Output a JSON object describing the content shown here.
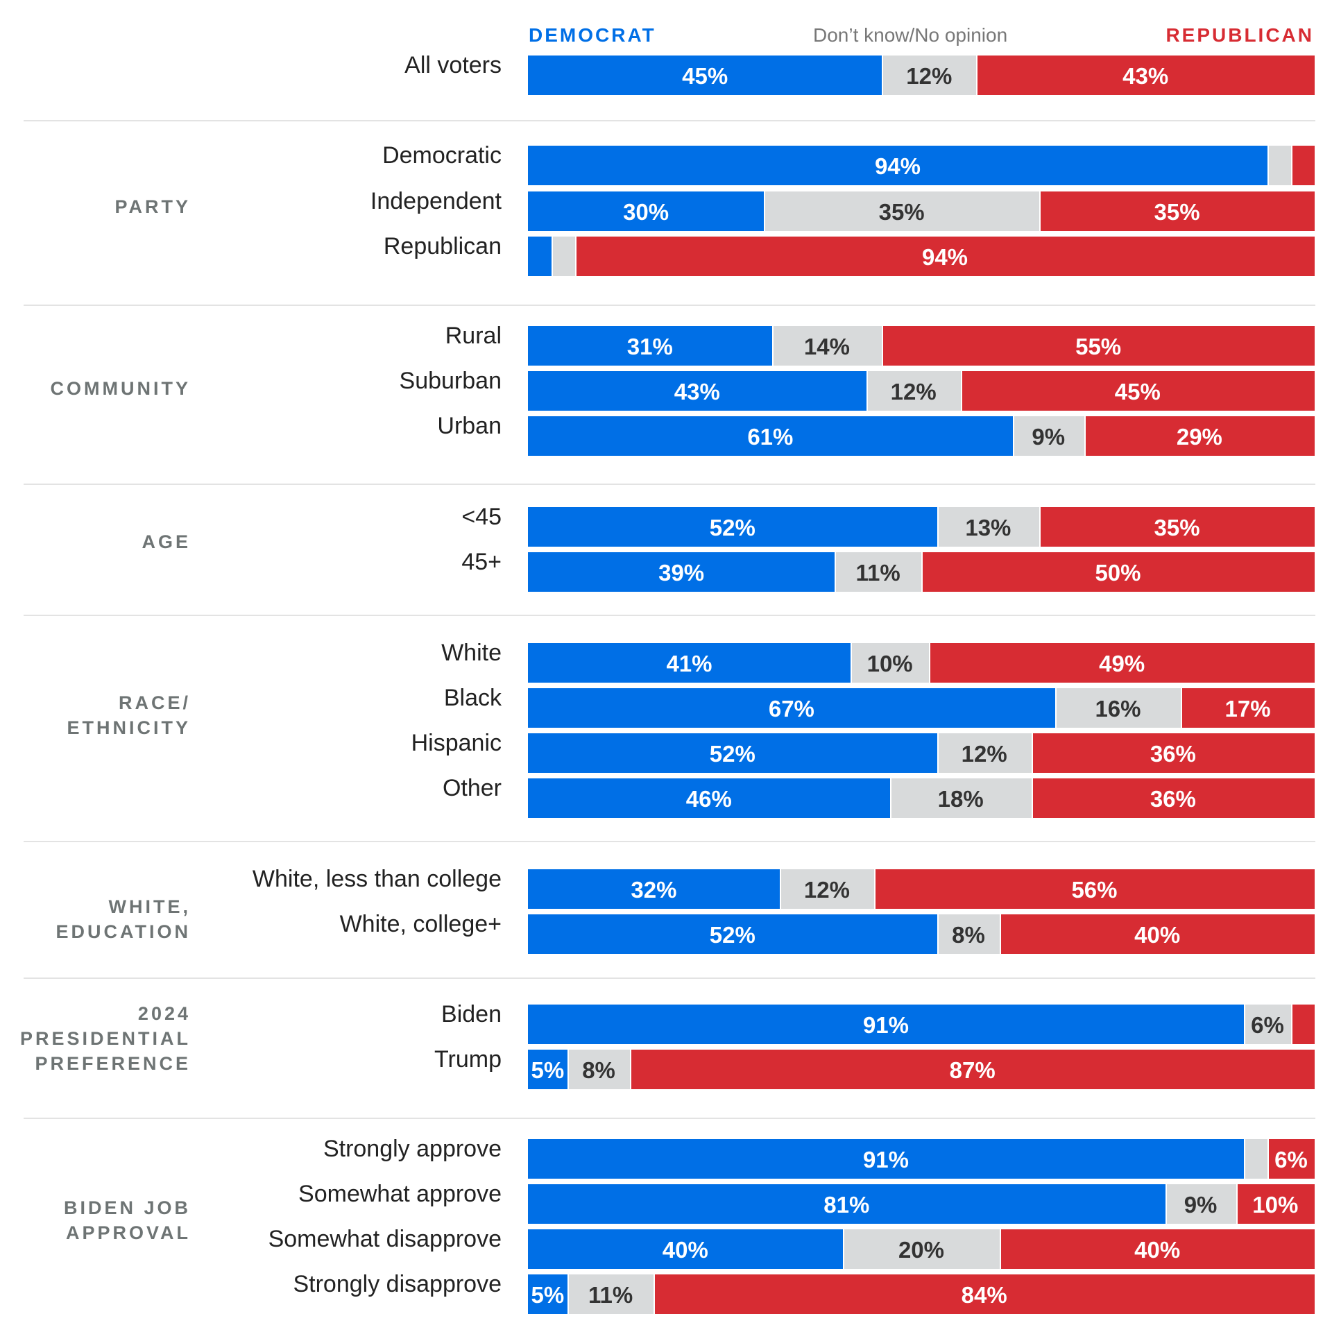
{
  "header": {
    "democrat": "DEMOCRAT",
    "dont_know": "Don’t know/No opinion",
    "republican": "REPUBLICAN"
  },
  "colors": {
    "democrat": "#006fe6",
    "dont_know": "#d8dadb",
    "republican": "#d72c33"
  },
  "chart_data": {
    "type": "bar",
    "orientation": "horizontal",
    "stacked": true,
    "normalized_to": 100,
    "series_names": [
      "DEMOCRAT",
      "Don’t know/No opinion",
      "REPUBLICAN"
    ],
    "groups": [
      {
        "label": "",
        "rows": [
          {
            "label": "All voters",
            "values": [
              45,
              12,
              43
            ],
            "shown": [
              "45%",
              "12%",
              "43%"
            ]
          }
        ]
      },
      {
        "label": "PARTY",
        "rows": [
          {
            "label": "Democratic",
            "values": [
              94,
              3,
              3
            ],
            "shown": [
              "94%",
              "",
              ""
            ]
          },
          {
            "label": "Independent",
            "values": [
              30,
              35,
              35
            ],
            "shown": [
              "30%",
              "35%",
              "35%"
            ]
          },
          {
            "label": "Republican",
            "values": [
              3,
              3,
              94
            ],
            "shown": [
              "",
              "",
              "94%"
            ]
          }
        ]
      },
      {
        "label": "COMMUNITY",
        "rows": [
          {
            "label": "Rural",
            "values": [
              31,
              14,
              55
            ],
            "shown": [
              "31%",
              "14%",
              "55%"
            ]
          },
          {
            "label": "Suburban",
            "values": [
              43,
              12,
              45
            ],
            "shown": [
              "43%",
              "12%",
              "45%"
            ]
          },
          {
            "label": "Urban",
            "values": [
              61,
              9,
              29
            ],
            "shown": [
              "61%",
              "9%",
              "29%"
            ]
          }
        ]
      },
      {
        "label": "AGE",
        "rows": [
          {
            "label": "<45",
            "values": [
              52,
              13,
              35
            ],
            "shown": [
              "52%",
              "13%",
              "35%"
            ]
          },
          {
            "label": "45+",
            "values": [
              39,
              11,
              50
            ],
            "shown": [
              "39%",
              "11%",
              "50%"
            ]
          }
        ]
      },
      {
        "label": "RACE/\nETHNICITY",
        "rows": [
          {
            "label": "White",
            "values": [
              41,
              10,
              49
            ],
            "shown": [
              "41%",
              "10%",
              "49%"
            ]
          },
          {
            "label": "Black",
            "values": [
              67,
              16,
              17
            ],
            "shown": [
              "67%",
              "16%",
              "17%"
            ]
          },
          {
            "label": "Hispanic",
            "values": [
              52,
              12,
              36
            ],
            "shown": [
              "52%",
              "12%",
              "36%"
            ]
          },
          {
            "label": "Other",
            "values": [
              46,
              18,
              36
            ],
            "shown": [
              "46%",
              "18%",
              "36%"
            ]
          }
        ]
      },
      {
        "label": "WHITE,\nEDUCATION",
        "rows": [
          {
            "label": "White, less than college",
            "values": [
              32,
              12,
              56
            ],
            "shown": [
              "32%",
              "12%",
              "56%"
            ]
          },
          {
            "label": "White, college+",
            "values": [
              52,
              8,
              40
            ],
            "shown": [
              "52%",
              "8%",
              "40%"
            ]
          }
        ]
      },
      {
        "label": "2024\nPRESIDENTIAL\nPREFERENCE",
        "rows": [
          {
            "label": "Biden",
            "values": [
              91,
              6,
              3
            ],
            "shown": [
              "91%",
              "6%",
              ""
            ]
          },
          {
            "label": "Trump",
            "values": [
              5,
              8,
              87
            ],
            "shown": [
              "5%",
              "8%",
              "87%"
            ]
          }
        ]
      },
      {
        "label": "BIDEN JOB\nAPPROVAL",
        "rows": [
          {
            "label": "Strongly approve",
            "values": [
              91,
              3,
              6
            ],
            "shown": [
              "91%",
              "",
              "6%"
            ]
          },
          {
            "label": "Somewhat approve",
            "values": [
              81,
              9,
              10
            ],
            "shown": [
              "81%",
              "9%",
              "10%"
            ]
          },
          {
            "label": "Somewhat disapprove",
            "values": [
              40,
              20,
              40
            ],
            "shown": [
              "40%",
              "20%",
              "40%"
            ]
          },
          {
            "label": "Strongly disapprove",
            "values": [
              5,
              11,
              84
            ],
            "shown": [
              "5%",
              "11%",
              "84%"
            ]
          }
        ]
      }
    ]
  }
}
